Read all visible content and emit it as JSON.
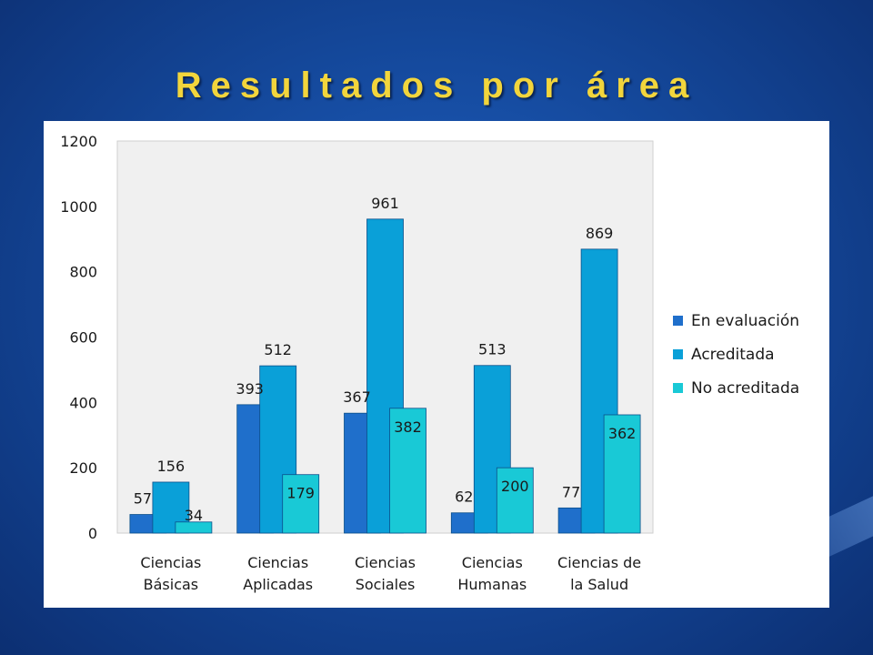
{
  "slide": {
    "title": "Resultados por área"
  },
  "chart_data": {
    "type": "bar",
    "categories": [
      [
        "Ciencias",
        "Básicas"
      ],
      [
        "Ciencias",
        "Aplicadas"
      ],
      [
        "Ciencias",
        "Sociales"
      ],
      [
        "Ciencias",
        "Humanas"
      ],
      [
        "Ciencias de",
        "la Salud"
      ]
    ],
    "series": [
      {
        "name": "En evaluación",
        "values": [
          57,
          393,
          367,
          62,
          77
        ],
        "color": "#1f6fcb"
      },
      {
        "name": "Acreditada",
        "values": [
          156,
          512,
          961,
          513,
          869
        ],
        "color": "#0aa0d8"
      },
      {
        "name": "No acreditada",
        "values": [
          34,
          179,
          382,
          200,
          362
        ],
        "color": "#19c9d6"
      }
    ],
    "ylim": [
      0,
      1200
    ],
    "yticks": [
      0,
      200,
      400,
      600,
      800,
      1000,
      1200
    ],
    "grid": false,
    "legend": "right",
    "plot_background": "#f0f0f0"
  }
}
